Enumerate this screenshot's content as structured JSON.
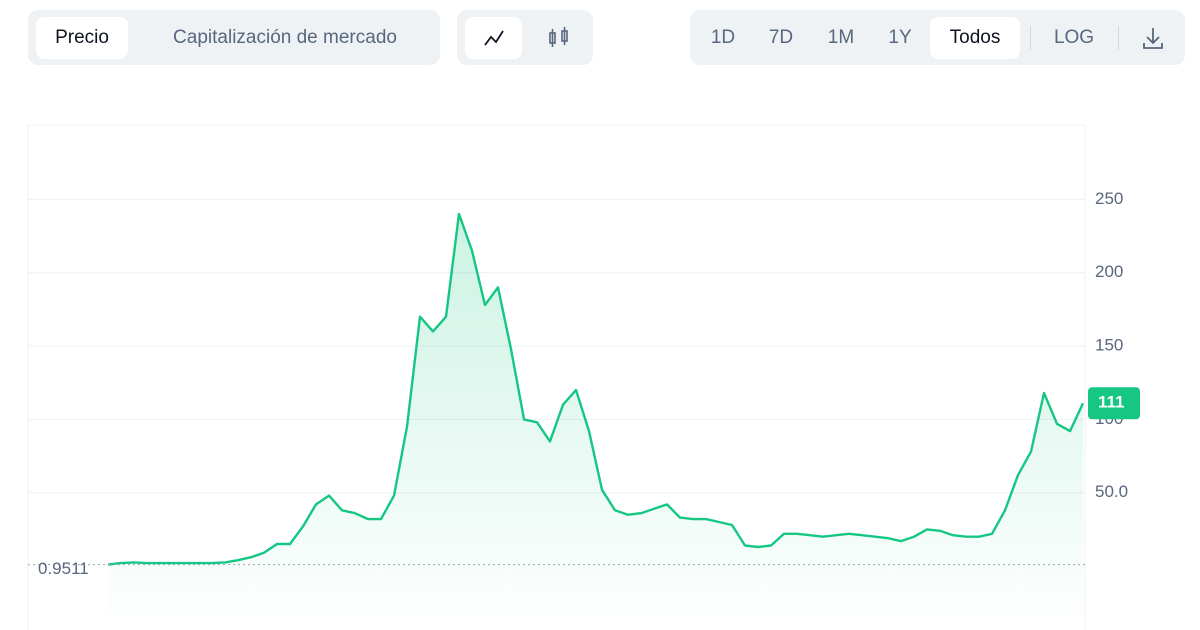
{
  "toolbar": {
    "tabs": [
      "Precio",
      "Capitalización de mercado"
    ],
    "ranges": [
      "1D",
      "7D",
      "1M",
      "1Y",
      "Todos"
    ],
    "log": "LOG"
  },
  "chart_data": {
    "type": "line",
    "series": [
      {
        "color": "#16c784",
        "values": [
          1,
          2,
          2.5,
          2,
          2,
          2,
          2,
          2,
          2,
          2.5,
          4,
          6,
          9,
          15,
          15,
          27,
          42,
          48,
          38,
          36,
          32,
          32,
          48,
          95,
          170,
          160,
          170,
          240,
          215,
          178,
          190,
          148,
          100,
          98,
          85,
          110,
          120,
          92,
          52,
          38,
          35,
          36,
          39,
          42,
          33,
          32,
          32,
          30,
          28,
          14,
          13,
          14,
          22,
          22,
          21,
          20,
          21,
          22,
          21,
          20,
          19,
          17,
          20,
          25,
          24,
          21,
          20,
          20,
          22,
          38,
          62,
          78,
          118,
          97,
          92,
          111
        ]
      }
    ],
    "ylim": [
      -43.6,
      300.7
    ],
    "yticks": [
      {
        "value": 50,
        "label": "50.0"
      },
      100,
      150,
      200,
      250
    ],
    "grid": true,
    "start_value": 0.9511,
    "current_value": 111
  }
}
